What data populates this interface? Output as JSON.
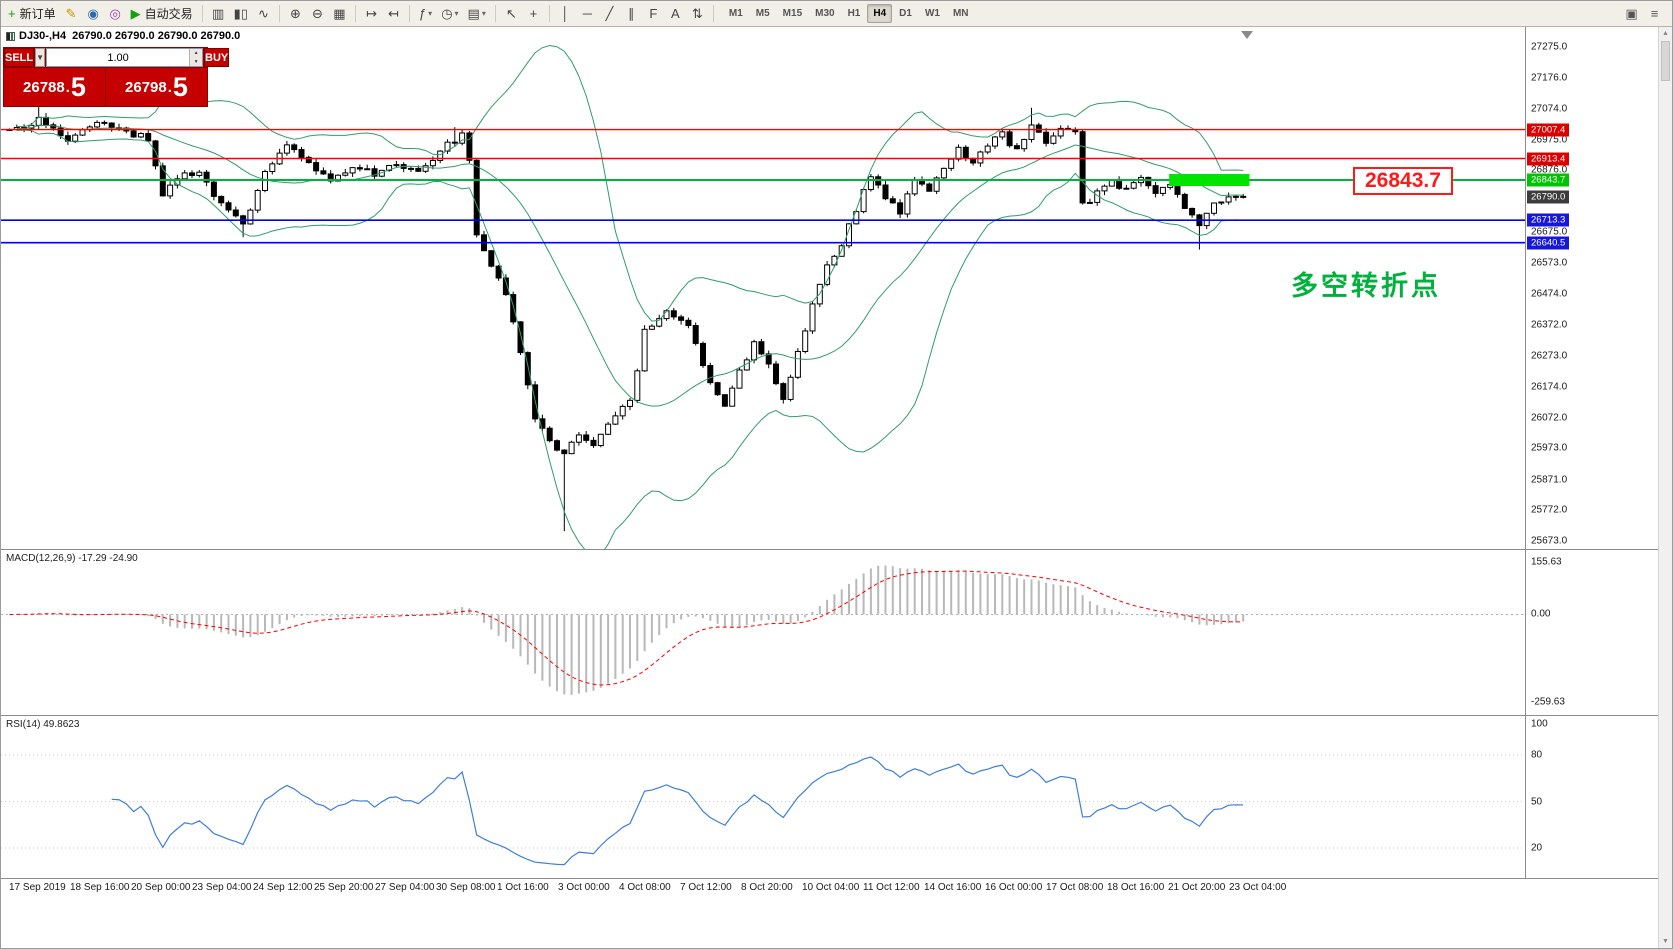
{
  "toolbar": {
    "items": [
      {
        "type": "button",
        "name": "new-order-button",
        "glyph": "+",
        "glyph_color": "#149a14",
        "label": "新订单"
      },
      {
        "type": "icon",
        "name": "mql-editor-icon",
        "glyph": "✎",
        "color": "#c79100"
      },
      {
        "type": "icon",
        "name": "market-watch-icon",
        "glyph": "◉",
        "color": "#2b6cb0"
      },
      {
        "type": "icon",
        "name": "signals-icon",
        "glyph": "◎",
        "color": "#9a3fb0"
      },
      {
        "type": "button",
        "name": "auto-trading-button",
        "glyph": "▶",
        "glyph_color": "#13a10e",
        "label": "自动交易"
      },
      {
        "type": "sep"
      },
      {
        "type": "icon",
        "name": "bar-chart-mode-icon",
        "glyph": "▥",
        "color": "#444"
      },
      {
        "type": "icon",
        "name": "candlestick-mode-icon",
        "glyph": "▮▯",
        "color": "#444"
      },
      {
        "type": "icon",
        "name": "line-chart-mode-icon",
        "glyph": "∿",
        "color": "#444"
      },
      {
        "type": "sep"
      },
      {
        "type": "icon",
        "name": "zoom-in-icon",
        "glyph": "⊕",
        "color": "#444"
      },
      {
        "type": "icon",
        "name": "zoom-out-icon",
        "glyph": "⊖",
        "color": "#444"
      },
      {
        "type": "icon",
        "name": "tile-windows-icon",
        "glyph": "▦",
        "color": "#444"
      },
      {
        "type": "sep"
      },
      {
        "type": "icon",
        "name": "auto-scroll-icon",
        "glyph": "↦",
        "color": "#444"
      },
      {
        "type": "icon",
        "name": "chart-shift-icon",
        "glyph": "↤",
        "color": "#444"
      },
      {
        "type": "sep"
      },
      {
        "type": "icon",
        "name": "indicators-icon",
        "glyph": "ƒ",
        "color": "#444",
        "dropdown": true
      },
      {
        "type": "icon",
        "name": "periods-icon",
        "glyph": "◷",
        "color": "#444",
        "dropdown": true
      },
      {
        "type": "icon",
        "name": "templates-icon",
        "glyph": "▤",
        "color": "#444",
        "dropdown": true
      },
      {
        "type": "sep"
      },
      {
        "type": "icon",
        "name": "cursor-icon",
        "glyph": "↖",
        "color": "#444"
      },
      {
        "type": "icon",
        "name": "crosshair-icon",
        "glyph": "+",
        "color": "#444"
      },
      {
        "type": "sep"
      },
      {
        "type": "icon",
        "name": "vertical-line-icon",
        "glyph": "│",
        "color": "#444"
      },
      {
        "type": "icon",
        "name": "horizontal-line-icon",
        "glyph": "─",
        "color": "#444"
      },
      {
        "type": "icon",
        "name": "trendline-icon",
        "glyph": "╱",
        "color": "#444"
      },
      {
        "type": "icon",
        "name": "channel-icon",
        "glyph": "∥",
        "color": "#444"
      },
      {
        "type": "icon",
        "name": "fibonacci-icon",
        "glyph": "F",
        "color": "#444"
      },
      {
        "type": "icon",
        "name": "text-label-icon",
        "glyph": "A",
        "color": "#444"
      },
      {
        "type": "icon",
        "name": "arrows-icon",
        "glyph": "⇅",
        "color": "#444"
      },
      {
        "type": "sep"
      }
    ],
    "timeframes": {
      "items": [
        "M1",
        "M5",
        "M15",
        "M30",
        "H1",
        "H4",
        "D1",
        "W1",
        "MN"
      ],
      "active": "H4"
    },
    "right_items": [
      {
        "name": "data-window-icon",
        "glyph": "▣",
        "color": "#555"
      },
      {
        "name": "navigator-icon",
        "glyph": "≡",
        "color": "#555"
      }
    ]
  },
  "trade_panel": {
    "sell_label": "SELL",
    "buy_label": "BUY",
    "volume": "1.00",
    "dropdown_glyph": "▼",
    "spinner_up": "▲",
    "spinner_down": "▼",
    "sell_price": {
      "main": "26788",
      "dot": ".",
      "fraction": "5"
    },
    "buy_price": {
      "main": "26798",
      "dot": ".",
      "fraction": "5"
    }
  },
  "chart": {
    "title_symbol": "DJ30-,H4",
    "title_ohlc": "26790.0 26790.0 26790.0 26790.0",
    "annotation": "多空转折点",
    "callout_price": "26843.7",
    "price_axis_labels": [
      "27275.0",
      "27176.0",
      "27074.0",
      "26975.0",
      "26876.0",
      "26775.0",
      "26675.0",
      "26573.0",
      "26474.0",
      "26372.0",
      "26273.0",
      "26174.0",
      "26072.0",
      "25973.0",
      "25871.0",
      "25772.0",
      "25673.0"
    ],
    "price_tags": [
      {
        "label": "27007.4",
        "value": 27007.4,
        "bg": "#dd0000"
      },
      {
        "label": "26913.4",
        "value": 26913.4,
        "bg": "#dd0000"
      },
      {
        "label": "26843.7",
        "value": 26843.7,
        "bg": "#00c400"
      },
      {
        "label": "26790.0",
        "value": 26790.0,
        "bg": "#3c3c3c"
      },
      {
        "label": "26713.3",
        "value": 26713.3,
        "bg": "#1616dd"
      },
      {
        "label": "26640.5",
        "value": 26640.5,
        "bg": "#1616dd"
      }
    ],
    "hlines": [
      {
        "value": 27007.4,
        "color": "#ff0000",
        "width": 1.4
      },
      {
        "value": 26913.4,
        "color": "#ff0000",
        "width": 1.4
      },
      {
        "value": 26843.7,
        "color": "#00b33c",
        "width": 2
      },
      {
        "value": 26713.3,
        "color": "#0000ff",
        "width": 1.6
      },
      {
        "value": 26640.5,
        "color": "#0000ff",
        "width": 1.6
      }
    ],
    "highlight_rect": {
      "price": 26843.7,
      "from_index": 159.2,
      "to_index": 170.2,
      "half_height": 6,
      "color": "#00e400"
    },
    "colors": {
      "bull": "#ffffff",
      "bear": "#000000",
      "wick": "#000000",
      "bollinger": "#2f9e68",
      "background": "#ffffff"
    }
  },
  "chart_data": {
    "type": "candlestick",
    "symbol": "DJ30-",
    "timeframe": "H4",
    "count": 170,
    "y_axis": {
      "max": 27275,
      "min": 25673
    },
    "last_price": 26790.0,
    "close_anchors": [
      [
        0,
        27000
      ],
      [
        4,
        27040
      ],
      [
        8,
        26980
      ],
      [
        12,
        27030
      ],
      [
        16,
        27000
      ],
      [
        19,
        26980
      ],
      [
        21,
        26790
      ],
      [
        23,
        26850
      ],
      [
        26,
        26870
      ],
      [
        29,
        26760
      ],
      [
        32,
        26700
      ],
      [
        35,
        26870
      ],
      [
        38,
        26960
      ],
      [
        41,
        26900
      ],
      [
        44,
        26830
      ],
      [
        47,
        26890
      ],
      [
        50,
        26860
      ],
      [
        53,
        26900
      ],
      [
        56,
        26870
      ],
      [
        59,
        26940
      ],
      [
        62,
        26990
      ],
      [
        63,
        26900
      ],
      [
        64,
        26660
      ],
      [
        66,
        26560
      ],
      [
        68,
        26480
      ],
      [
        70,
        26280
      ],
      [
        72,
        26080
      ],
      [
        74,
        25990
      ],
      [
        76,
        25960
      ],
      [
        78,
        26010
      ],
      [
        80,
        25980
      ],
      [
        82,
        26060
      ],
      [
        85,
        26120
      ],
      [
        87,
        26350
      ],
      [
        90,
        26420
      ],
      [
        93,
        26370
      ],
      [
        96,
        26180
      ],
      [
        98,
        26100
      ],
      [
        100,
        26220
      ],
      [
        102,
        26310
      ],
      [
        104,
        26240
      ],
      [
        106,
        26130
      ],
      [
        108,
        26280
      ],
      [
        110,
        26440
      ],
      [
        112,
        26560
      ],
      [
        114,
        26640
      ],
      [
        116,
        26750
      ],
      [
        118,
        26860
      ],
      [
        120,
        26790
      ],
      [
        122,
        26740
      ],
      [
        124,
        26850
      ],
      [
        126,
        26810
      ],
      [
        128,
        26890
      ],
      [
        130,
        26940
      ],
      [
        132,
        26890
      ],
      [
        134,
        26960
      ],
      [
        136,
        26990
      ],
      [
        138,
        26940
      ],
      [
        140,
        27030
      ],
      [
        142,
        26970
      ],
      [
        144,
        27010
      ],
      [
        146,
        26990
      ],
      [
        147,
        26760
      ],
      [
        149,
        26800
      ],
      [
        151,
        26840
      ],
      [
        153,
        26810
      ],
      [
        155,
        26860
      ],
      [
        157,
        26790
      ],
      [
        159,
        26830
      ],
      [
        161,
        26760
      ],
      [
        163,
        26700
      ],
      [
        165,
        26760
      ],
      [
        167,
        26790
      ],
      [
        169,
        26790
      ]
    ],
    "low_overrides": {
      "32": 26658,
      "76": 25705,
      "163": 26618
    },
    "high_overrides": {
      "4": 27092,
      "61": 27015,
      "140": 27078
    },
    "indicators": {
      "bollinger": {
        "period": 20,
        "deviation": 2
      },
      "macd": {
        "fast": 12,
        "slow": 26,
        "signal": 9,
        "current": "-17.29 -24.90"
      },
      "rsi": {
        "period": 14,
        "current": 49.8623
      }
    }
  },
  "macd_panel": {
    "label": "MACD(12,26,9) -17.29 -24.90",
    "axis": [
      {
        "label": "155.63",
        "value": 155.63
      },
      {
        "label": "0.00",
        "value": 0
      },
      {
        "label": "-259.63",
        "value": -259.63
      }
    ]
  },
  "rsi_panel": {
    "label": "RSI(14) 49.8623",
    "axis": [
      {
        "label": "100",
        "value": 100
      },
      {
        "label": "80",
        "value": 80
      },
      {
        "label": "50",
        "value": 50
      },
      {
        "label": "20",
        "value": 20
      }
    ]
  },
  "time_axis": {
    "labels": [
      "17 Sep 2019",
      "18 Sep 16:00",
      "20 Sep 00:00",
      "23 Sep 04:00",
      "24 Sep 12:00",
      "25 Sep 20:00",
      "27 Sep 04:00",
      "30 Sep 08:00",
      "1 Oct 16:00",
      "3 Oct 00:00",
      "4 Oct 08:00",
      "7 Oct 12:00",
      "8 Oct 20:00",
      "10 Oct 04:00",
      "11 Oct 12:00",
      "14 Oct 16:00",
      "16 Oct 00:00",
      "17 Oct 08:00",
      "18 Oct 16:00",
      "21 Oct 20:00",
      "23 Oct 04:00"
    ]
  },
  "scrollbar": {
    "up_glyph": "▲",
    "down_glyph": "▼"
  }
}
